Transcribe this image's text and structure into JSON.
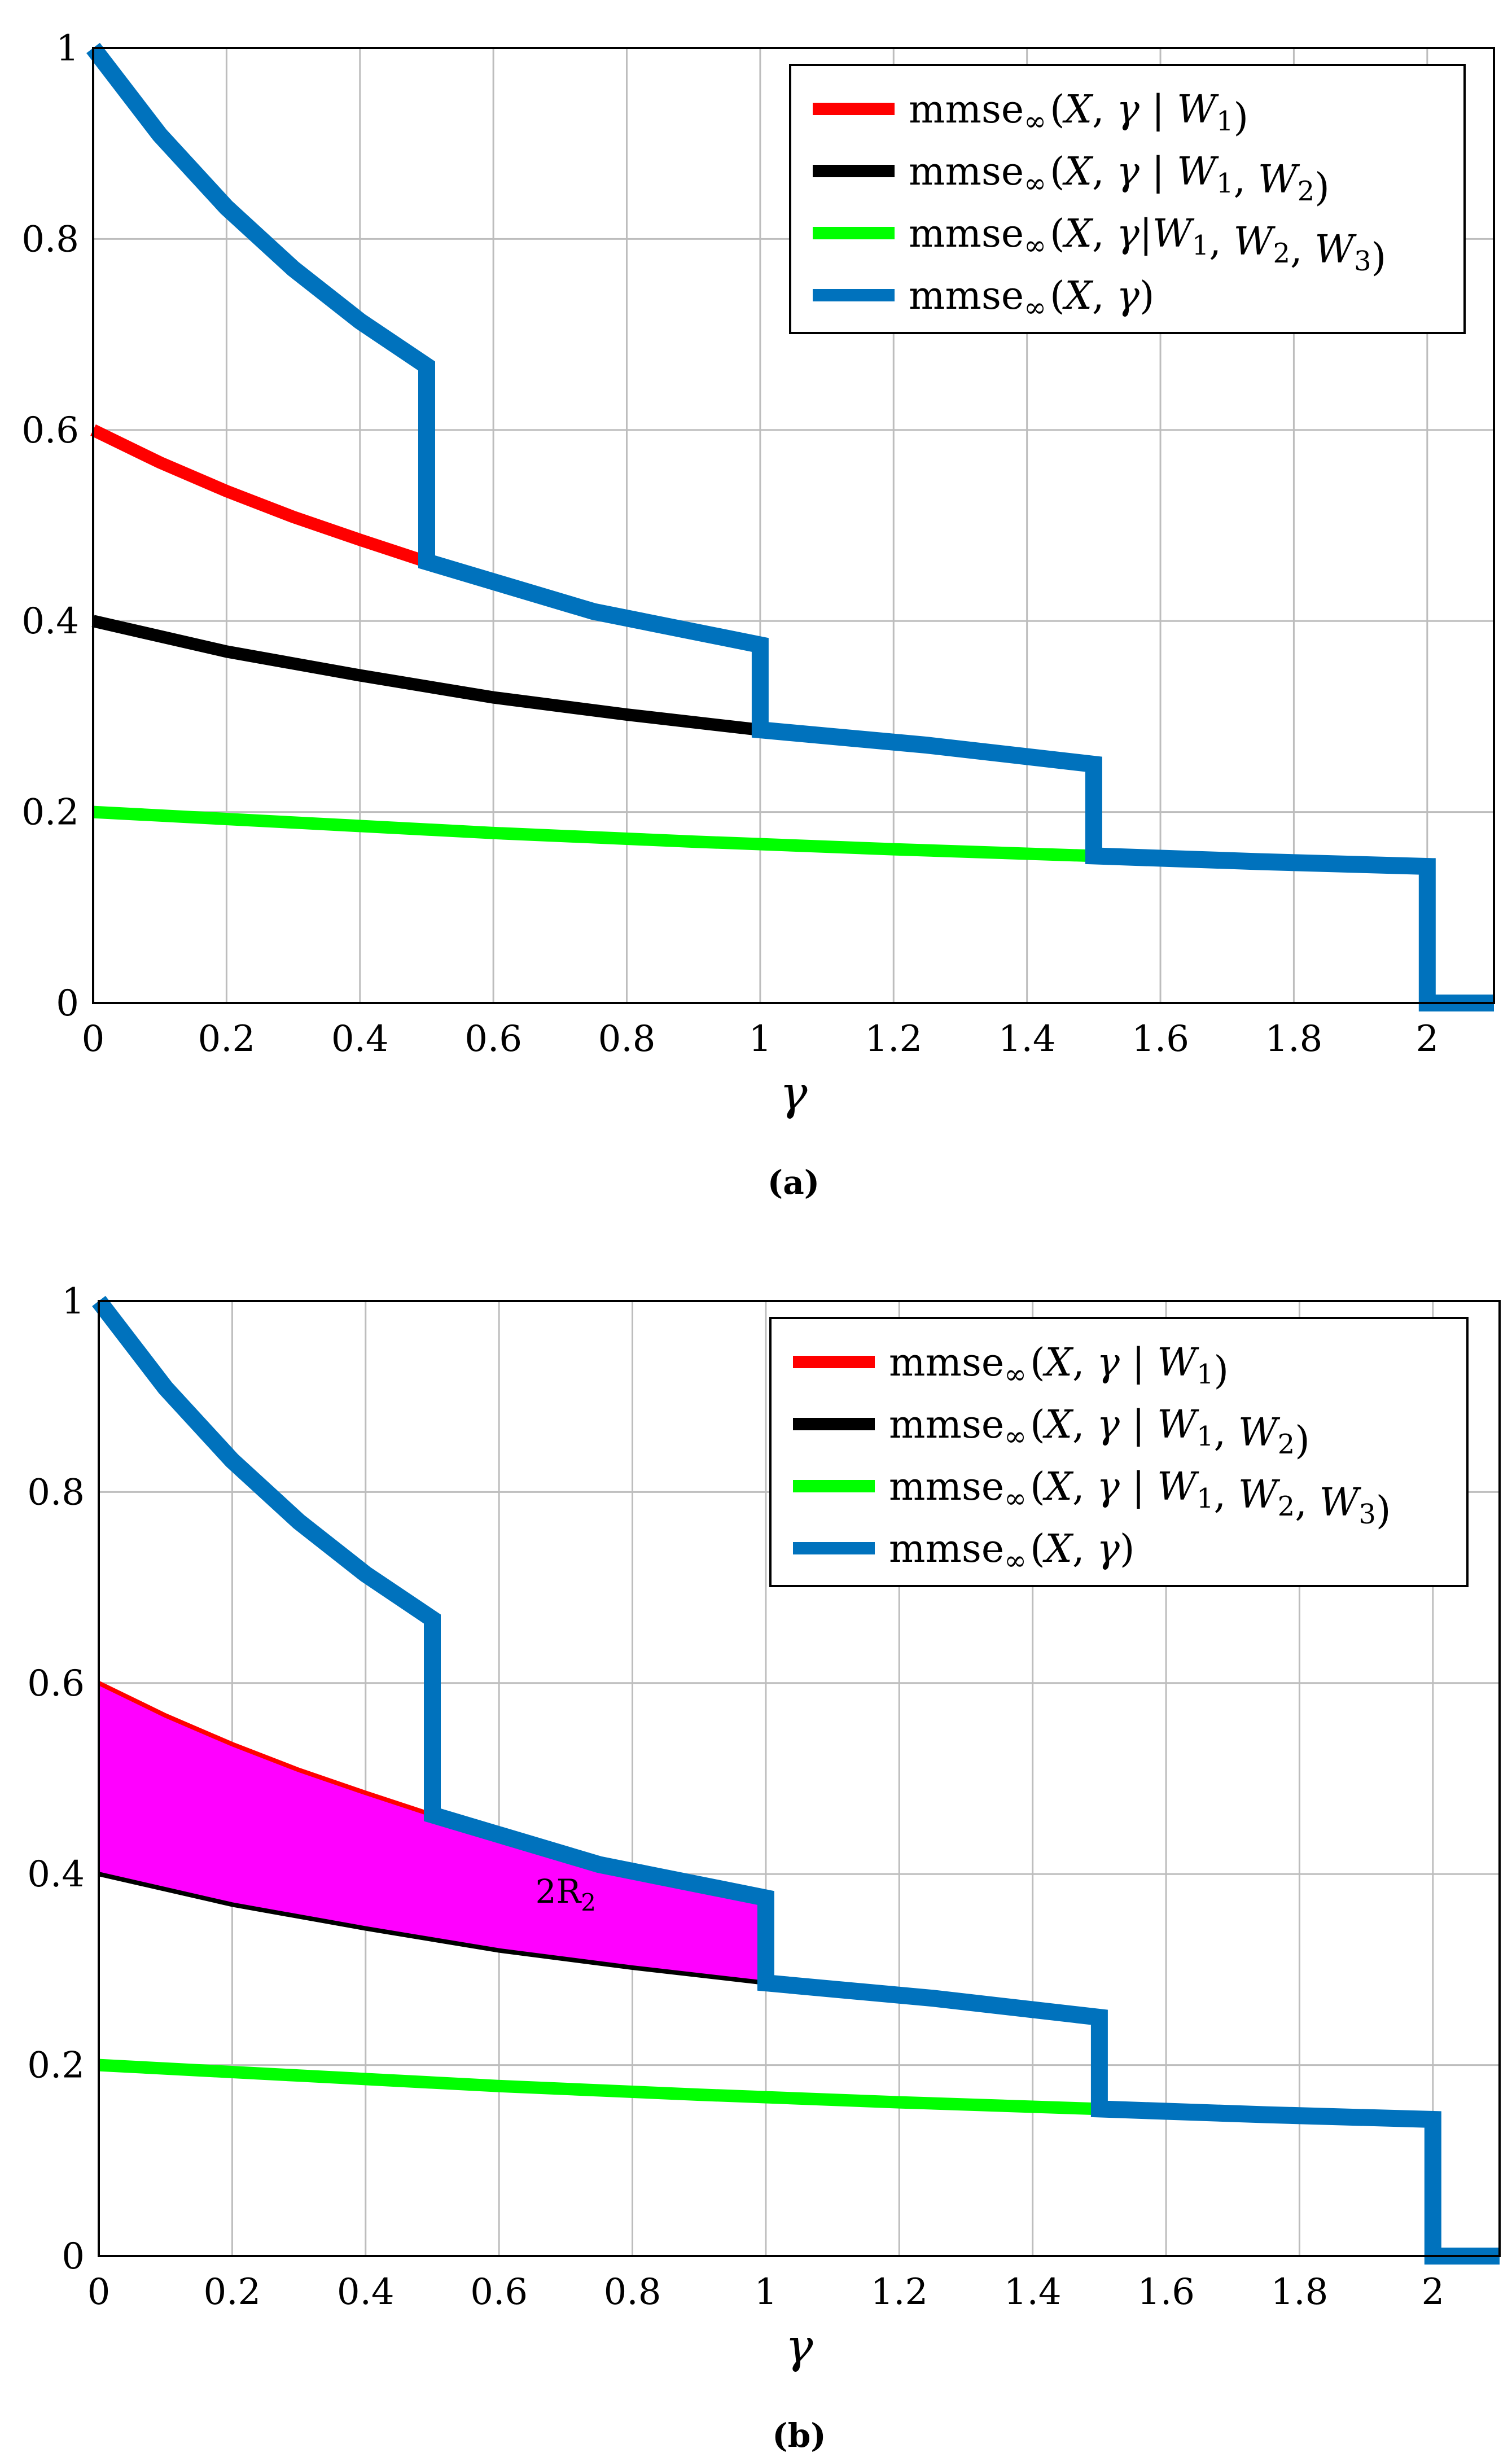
{
  "chart_data": [
    {
      "id": "a",
      "type": "line",
      "caption": "(a)",
      "xlabel": "γ",
      "ylabel": "",
      "xlim": [
        0,
        2.1
      ],
      "ylim": [
        0,
        1
      ],
      "xticks": [
        0,
        0.2,
        0.4,
        0.6,
        0.8,
        1,
        1.2,
        1.4,
        1.6,
        1.8,
        2
      ],
      "xtick_labels": [
        "0",
        "0.2",
        "0.4",
        "0.6",
        "0.8",
        "1",
        "1.2",
        "1.4",
        "1.6",
        "1.8",
        "2"
      ],
      "yticks": [
        0,
        0.2,
        0.4,
        0.6,
        0.8,
        1
      ],
      "ytick_labels": [
        "0",
        "0.2",
        "0.4",
        "0.6",
        "0.8",
        "1"
      ],
      "grid": true,
      "legend_position": "top-right",
      "series": [
        {
          "name": "mmse∞(X, γ | W1)",
          "color": "#ff0000",
          "x": [
            0,
            0.1,
            0.2,
            0.3,
            0.4,
            0.5
          ],
          "y": [
            0.6,
            0.566,
            0.536,
            0.509,
            0.485,
            0.462
          ]
        },
        {
          "name": "mmse∞(X, γ | W1, W2)",
          "color": "#000000",
          "x": [
            0,
            0.2,
            0.4,
            0.6,
            0.8,
            1.0
          ],
          "y": [
            0.4,
            0.368,
            0.343,
            0.32,
            0.302,
            0.286
          ]
        },
        {
          "name": "mmse∞(X, γ|W1, W2, W3)",
          "color": "#00ff00",
          "x": [
            0,
            0.3,
            0.6,
            0.9,
            1.2,
            1.5
          ],
          "y": [
            0.2,
            0.189,
            0.178,
            0.169,
            0.161,
            0.154
          ]
        },
        {
          "name": "mmse∞(X, γ)",
          "color": "#0072bd",
          "x": [
            0,
            0.1,
            0.2,
            0.3,
            0.4,
            0.5,
            0.5,
            0.75,
            1.0,
            1.0,
            1.25,
            1.5,
            1.5,
            1.75,
            2.0,
            2.0,
            2.1
          ],
          "y": [
            1.0,
            0.909,
            0.833,
            0.769,
            0.714,
            0.667,
            0.462,
            0.41,
            0.375,
            0.286,
            0.27,
            0.25,
            0.154,
            0.148,
            0.143,
            0.0,
            0.0
          ]
        }
      ],
      "legend": [
        {
          "prefix": "mmse",
          "sub": "∞",
          "open": "(",
          "var": "X",
          "sep": ",",
          "gamma": "γ",
          "given": " | ",
          "ws": [
            {
              "w": "W",
              "n": "1"
            }
          ],
          "close": ")"
        },
        {
          "prefix": "mmse",
          "sub": "∞",
          "open": "(",
          "var": "X",
          "sep": ",",
          "gamma": "γ",
          "given": " | ",
          "ws": [
            {
              "w": "W",
              "n": "1"
            },
            {
              "w": "W",
              "n": "2"
            }
          ],
          "close": ")"
        },
        {
          "prefix": "mmse",
          "sub": "∞",
          "open": "(",
          "var": "X",
          "sep": ",",
          "gamma": "γ",
          "given": "|",
          "ws": [
            {
              "w": "W",
              "n": "1"
            },
            {
              "w": "W",
              "n": "2"
            },
            {
              "w": "W",
              "n": "3"
            }
          ],
          "close": ")"
        },
        {
          "prefix": "mmse",
          "sub": "∞",
          "open": "(",
          "var": "X",
          "sep": ",",
          "gamma": "γ",
          "given": "",
          "ws": [],
          "close": ")"
        }
      ]
    },
    {
      "id": "b",
      "type": "area",
      "caption": "(b)",
      "xlabel": "γ",
      "ylabel": "",
      "xlim": [
        0,
        2.1
      ],
      "ylim": [
        0,
        1
      ],
      "xticks": [
        0,
        0.2,
        0.4,
        0.6,
        0.8,
        1,
        1.2,
        1.4,
        1.6,
        1.8,
        2
      ],
      "xtick_labels": [
        "0",
        "0.2",
        "0.4",
        "0.6",
        "0.8",
        "1",
        "1.2",
        "1.4",
        "1.6",
        "1.8",
        "2"
      ],
      "yticks": [
        0,
        0.2,
        0.4,
        0.6,
        0.8,
        1
      ],
      "ytick_labels": [
        "0",
        "0.2",
        "0.4",
        "0.6",
        "0.8",
        "1"
      ],
      "grid": true,
      "legend_position": "top-right",
      "shaded_region": {
        "label_main": "2R",
        "label_sub": "2",
        "label_x": 0.7,
        "label_y": 0.37,
        "color": "#ff00ff",
        "x_from": 0,
        "x_to": 1.0
      },
      "series": [
        {
          "name": "mmse∞(X, γ | W1)",
          "color": "#ff0000",
          "x": [
            0,
            0.1,
            0.2,
            0.3,
            0.4,
            0.5
          ],
          "y": [
            0.6,
            0.566,
            0.536,
            0.509,
            0.485,
            0.462
          ]
        },
        {
          "name": "mmse∞(X, γ | W1, W2)",
          "color": "#000000",
          "x": [
            0,
            0.2,
            0.4,
            0.6,
            0.8,
            1.0
          ],
          "y": [
            0.4,
            0.368,
            0.343,
            0.32,
            0.302,
            0.286
          ]
        },
        {
          "name": "mmse∞(X, γ | W1, W2, W3)",
          "color": "#00ff00",
          "x": [
            0,
            0.3,
            0.6,
            0.9,
            1.2,
            1.5
          ],
          "y": [
            0.2,
            0.189,
            0.178,
            0.169,
            0.161,
            0.154
          ]
        },
        {
          "name": "mmse∞(X, γ)",
          "color": "#0072bd",
          "x": [
            0,
            0.1,
            0.2,
            0.3,
            0.4,
            0.5,
            0.5,
            0.75,
            1.0,
            1.0,
            1.25,
            1.5,
            1.5,
            1.75,
            2.0,
            2.0,
            2.1
          ],
          "y": [
            1.0,
            0.909,
            0.833,
            0.769,
            0.714,
            0.667,
            0.462,
            0.41,
            0.375,
            0.286,
            0.27,
            0.25,
            0.154,
            0.148,
            0.143,
            0.0,
            0.0
          ]
        }
      ],
      "legend": [
        {
          "prefix": "mmse",
          "sub": "∞",
          "open": "(",
          "var": "X",
          "sep": ",",
          "gamma": "γ",
          "given": " | ",
          "ws": [
            {
              "w": "W",
              "n": "1"
            }
          ],
          "close": ")"
        },
        {
          "prefix": "mmse",
          "sub": "∞",
          "open": "(",
          "var": "X",
          "sep": ",",
          "gamma": "γ",
          "given": " | ",
          "ws": [
            {
              "w": "W",
              "n": "1"
            },
            {
              "w": "W",
              "n": "2"
            }
          ],
          "close": ")"
        },
        {
          "prefix": "mmse",
          "sub": "∞",
          "open": "(",
          "var": "X",
          "sep": ",",
          "gamma": "γ",
          "given": " | ",
          "ws": [
            {
              "w": "W",
              "n": "1"
            },
            {
              "w": "W",
              "n": "2"
            },
            {
              "w": "W",
              "n": "3"
            }
          ],
          "close": ")"
        },
        {
          "prefix": "mmse",
          "sub": "∞",
          "open": "(",
          "var": "X",
          "sep": ",",
          "gamma": "γ",
          "given": "",
          "ws": [],
          "close": ")"
        }
      ]
    }
  ]
}
